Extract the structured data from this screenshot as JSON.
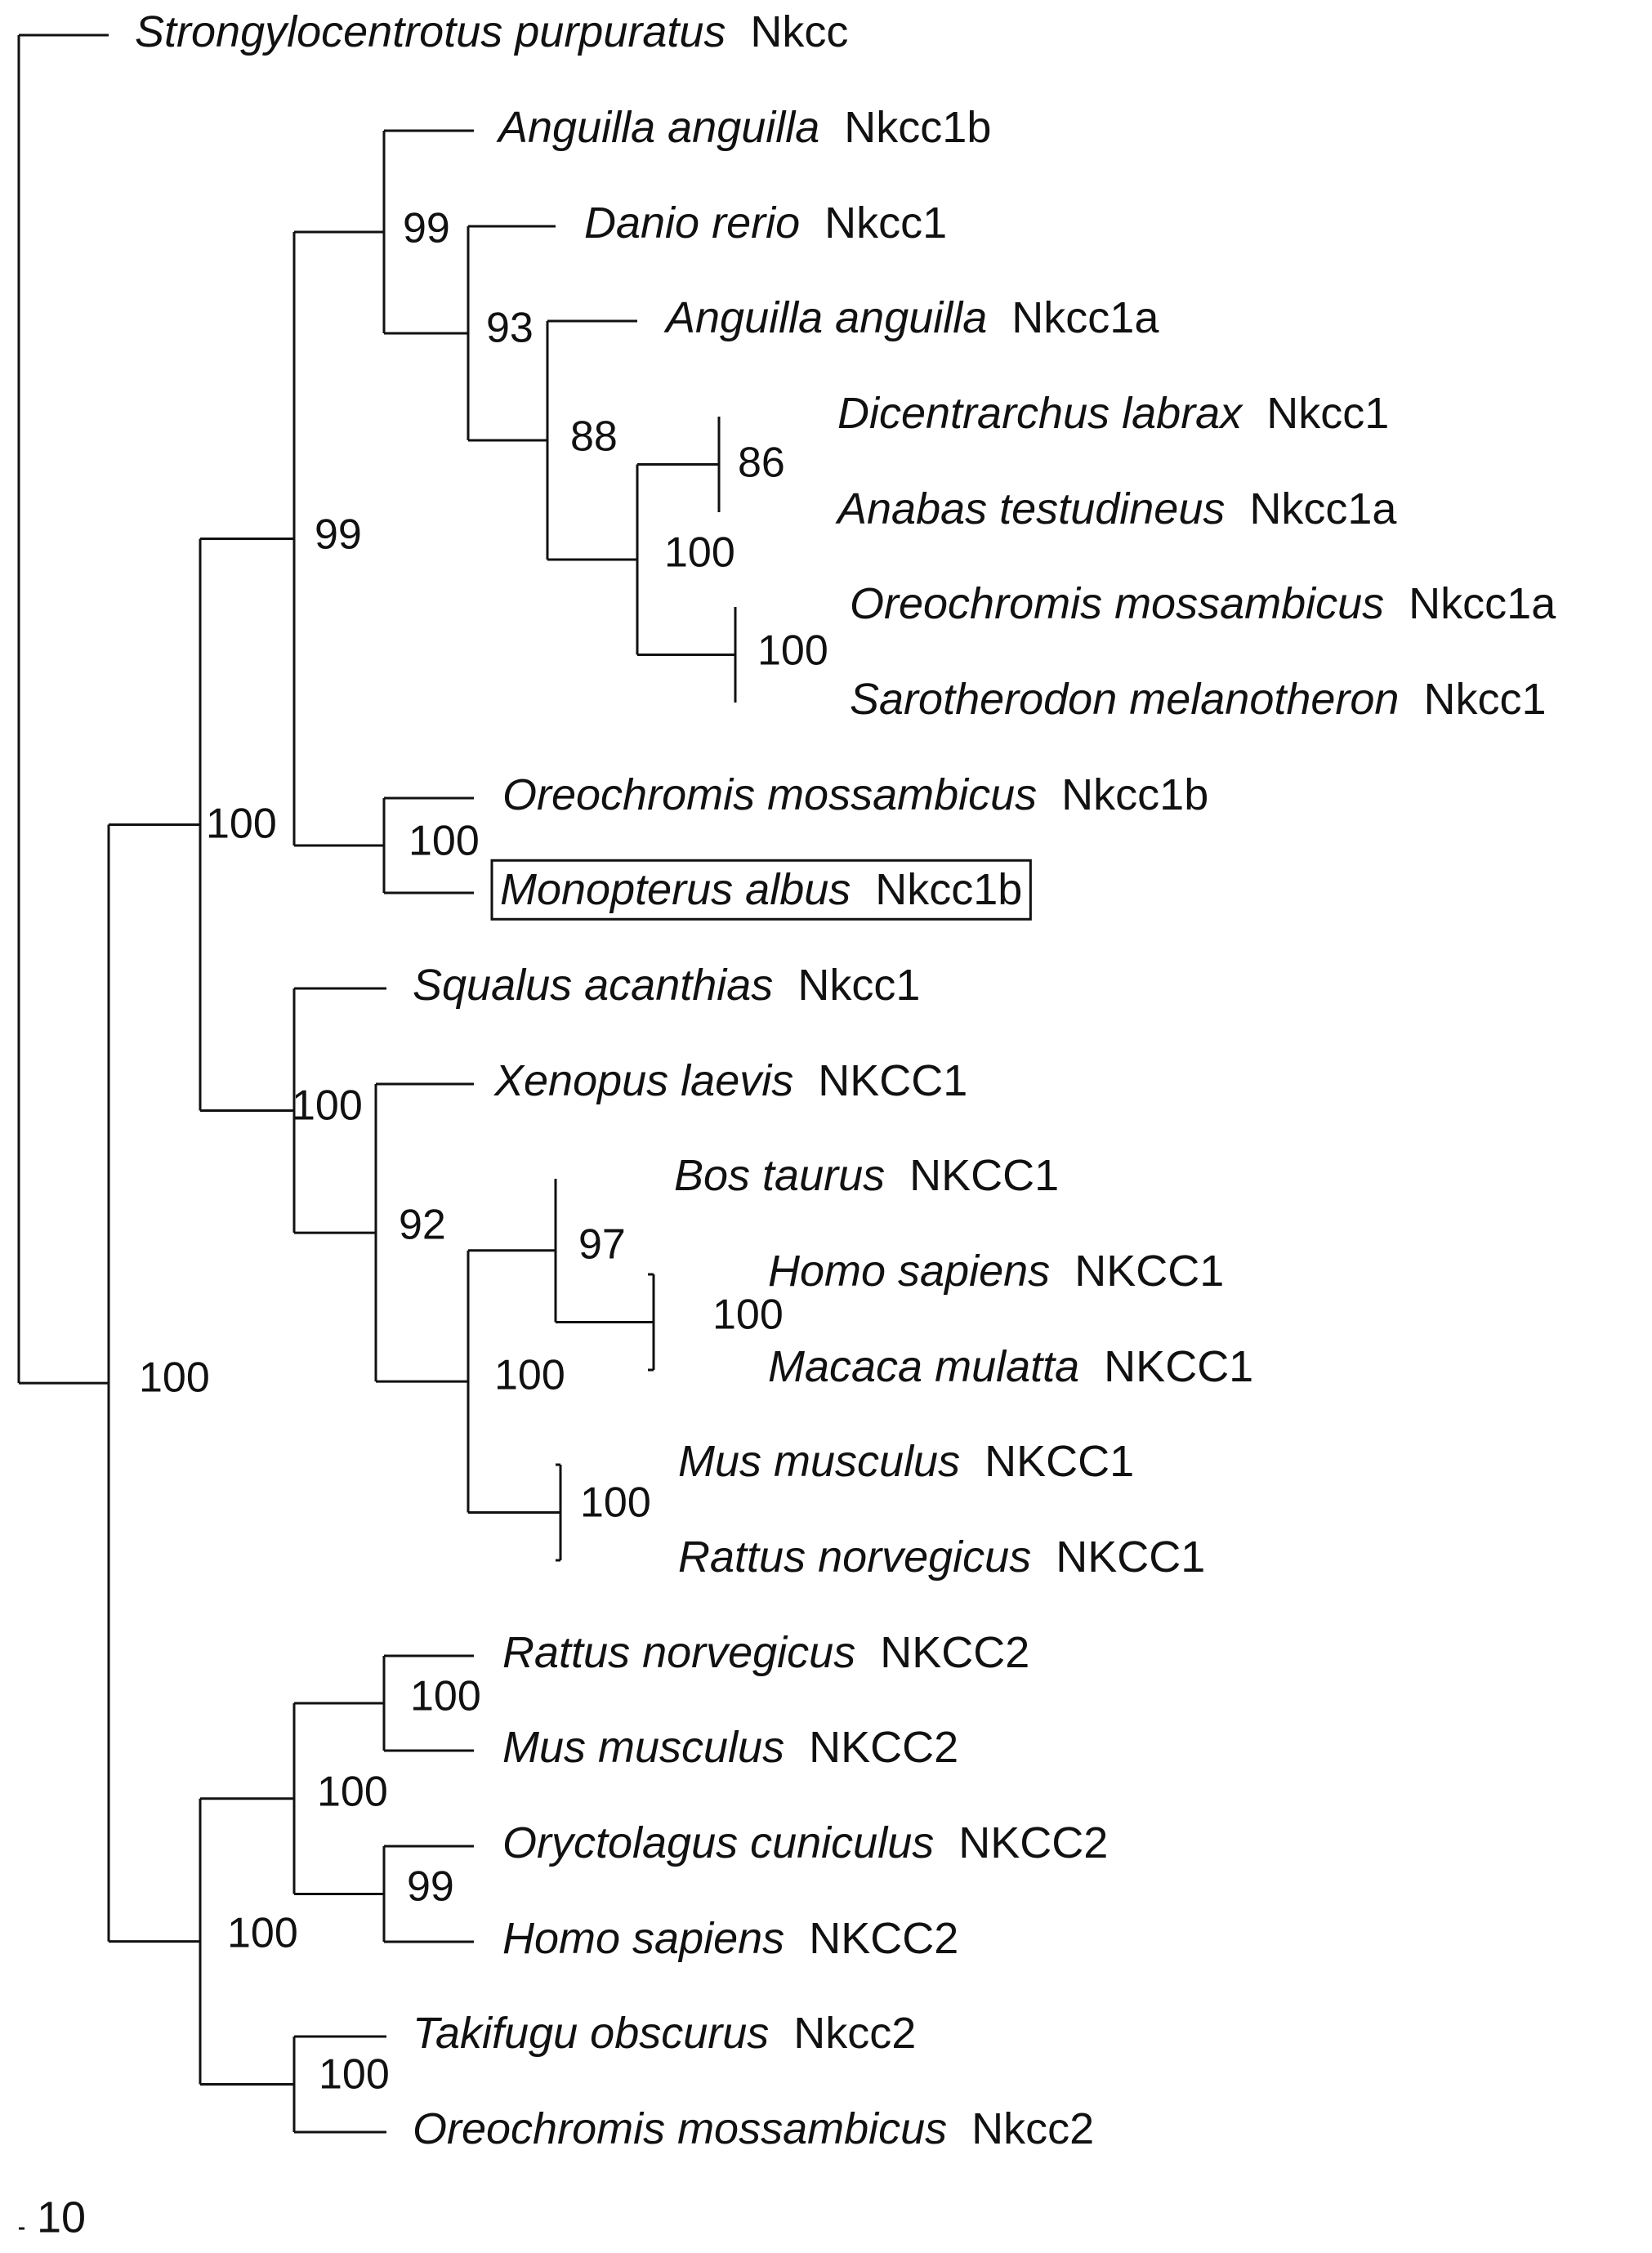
{
  "leaves": [
    {
      "species": "Strongylocentrotus purpuratus",
      "gene": "Nkcc"
    },
    {
      "species": "Anguilla anguilla",
      "gene": "Nkcc1b"
    },
    {
      "species": "Danio rerio",
      "gene": "Nkcc1"
    },
    {
      "species": "Anguilla anguilla",
      "gene": "Nkcc1a"
    },
    {
      "species": "Dicentrarchus labrax",
      "gene": "Nkcc1"
    },
    {
      "species": "Anabas testudineus",
      "gene": "Nkcc1a"
    },
    {
      "species": "Oreochromis mossambicus",
      "gene": "Nkcc1a"
    },
    {
      "species": "Sarotherodon melanotheron",
      "gene": "Nkcc1"
    },
    {
      "species": "Oreochromis mossambicus",
      "gene": "Nkcc1b"
    },
    {
      "species": "Monopterus albus",
      "gene": "Nkcc1b",
      "highlighted": true
    },
    {
      "species": "Squalus acanthias",
      "gene": "Nkcc1"
    },
    {
      "species": "Xenopus laevis",
      "gene": "NKCC1"
    },
    {
      "species": "Bos taurus",
      "gene": "NKCC1"
    },
    {
      "species": "Homo sapiens",
      "gene": "NKCC1"
    },
    {
      "species": "Macaca mulatta",
      "gene": "NKCC1"
    },
    {
      "species": "Mus musculus",
      "gene": "NKCC1"
    },
    {
      "species": "Rattus norvegicus",
      "gene": "NKCC1"
    },
    {
      "species": "Rattus norvegicus",
      "gene": "NKCC2"
    },
    {
      "species": "Mus musculus",
      "gene": "NKCC2"
    },
    {
      "species": "Oryctolagus cuniculus",
      "gene": "NKCC2"
    },
    {
      "species": "Homo sapiens",
      "gene": "NKCC2"
    },
    {
      "species": "Takifugu obscurus",
      "gene": "Nkcc2"
    },
    {
      "species": "Oreochromis mossambicus",
      "gene": "Nkcc2"
    }
  ],
  "bootstrap_values": [
    {
      "node": "AaNkcc1b+rest",
      "value": "99"
    },
    {
      "node": "Dr+rest",
      "value": "93"
    },
    {
      "node": "AaNkcc1a+rest",
      "value": "88"
    },
    {
      "node": "Dl+At",
      "value": "86"
    },
    {
      "node": "perciform",
      "value": "100"
    },
    {
      "node": "Om+Sm",
      "value": "100"
    },
    {
      "node": "teleost-nkcc1",
      "value": "99"
    },
    {
      "node": "Om1b+Ma1b",
      "value": "100"
    },
    {
      "node": "nkcc1-clade",
      "value": "100"
    },
    {
      "node": "Sq+tetrapod",
      "value": "100"
    },
    {
      "node": "Xl+mammal",
      "value": "92"
    },
    {
      "node": "mammal",
      "value": "100"
    },
    {
      "node": "primate+Bt",
      "value": "97"
    },
    {
      "node": "Hs+Mm",
      "value": "100"
    },
    {
      "node": "Mm+Rn",
      "value": "100"
    },
    {
      "node": "nkcc-root",
      "value": "100"
    },
    {
      "node": "Rn2+Mm2",
      "value": "100"
    },
    {
      "node": "mammal-nkcc2",
      "value": "100"
    },
    {
      "node": "Oc+Hs",
      "value": "99"
    },
    {
      "node": "nkcc2-clade",
      "value": "100"
    },
    {
      "node": "Tk+Om2",
      "value": "100"
    }
  ],
  "scale_bar_label": "10"
}
